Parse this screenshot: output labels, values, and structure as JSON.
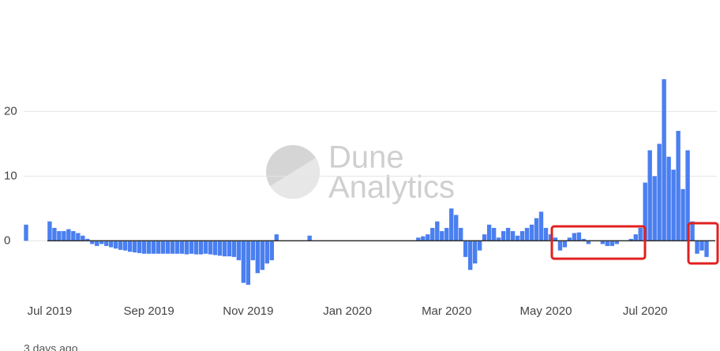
{
  "chart_data": {
    "type": "bar",
    "watermark": [
      "Dune",
      "Analytics"
    ],
    "footer": "3 days ago",
    "color": "#4a7ff0",
    "ylim": [
      -8.5,
      28.7
    ],
    "yticks": [
      0,
      10,
      20
    ],
    "grid": true,
    "categories": [
      null,
      null,
      null,
      null,
      null,
      "Jul 2019",
      null,
      null,
      null,
      null,
      null,
      null,
      null,
      null,
      null,
      null,
      null,
      null,
      null,
      null,
      null,
      null,
      null,
      null,
      null,
      null,
      "Sep 2019",
      null,
      null,
      null,
      null,
      null,
      null,
      null,
      null,
      null,
      null,
      null,
      null,
      null,
      null,
      null,
      null,
      null,
      null,
      null,
      null,
      "Nov 2019",
      null,
      null,
      null,
      null,
      null,
      null,
      null,
      null,
      null,
      null,
      null,
      null,
      null,
      null,
      null,
      null,
      null,
      null,
      null,
      null,
      "Jan 2020",
      null,
      null,
      null,
      null,
      null,
      null,
      null,
      null,
      null,
      null,
      null,
      null,
      null,
      null,
      null,
      null,
      null,
      null,
      null,
      null,
      "Mar 2020",
      null,
      null,
      null,
      null,
      null,
      null,
      null,
      null,
      null,
      null,
      null,
      null,
      null,
      null,
      null,
      null,
      null,
      null,
      null,
      null,
      "May 2020",
      null,
      null,
      null,
      null,
      null,
      null,
      null,
      null,
      null,
      null,
      null,
      null,
      null,
      null,
      null,
      null,
      null,
      null,
      null,
      null,
      "Jul 2020",
      null,
      null,
      null,
      null,
      null,
      null,
      null,
      null,
      null,
      null,
      null,
      null,
      null
    ],
    "values": [
      2.5,
      0,
      0,
      0,
      0,
      3,
      2,
      1.5,
      1.5,
      1.8,
      1.5,
      1.2,
      0.8,
      0.3,
      -0.5,
      -0.8,
      -0.5,
      -0.8,
      -1,
      -1.2,
      -1.4,
      -1.5,
      -1.7,
      -1.8,
      -1.9,
      -2,
      -2,
      -2,
      -2,
      -2,
      -2,
      -2,
      -2,
      -2,
      -2.1,
      -2,
      -2.1,
      -2.1,
      -2,
      -2.1,
      -2.2,
      -2.3,
      -2.4,
      -2.4,
      -2.5,
      -3,
      -6.5,
      -6.8,
      -3,
      -5,
      -4.5,
      -3.5,
      -3,
      1,
      0,
      0,
      0,
      0,
      0,
      0,
      0.8,
      0,
      0,
      0,
      0,
      0,
      0,
      0,
      0,
      0,
      0,
      0,
      0,
      0,
      0,
      0,
      0,
      0,
      0,
      0,
      0,
      0,
      0,
      0.5,
      0.7,
      1,
      2,
      3,
      1.5,
      2,
      5,
      4,
      2,
      -2.5,
      -4.5,
      -3.5,
      -1.5,
      1,
      2.5,
      2,
      0.5,
      1.5,
      2,
      1.5,
      0.8,
      1.5,
      2,
      2.5,
      3.5,
      4.5,
      2,
      1,
      0.5,
      -1.5,
      -1,
      0.5,
      1.2,
      1.3,
      0.3,
      -0.5,
      0,
      0,
      -0.5,
      -0.8,
      -0.8,
      -0.5,
      0,
      0,
      0.3,
      1,
      2,
      9,
      14,
      10,
      15,
      25,
      13,
      11,
      17,
      8,
      14,
      3,
      -2,
      -1.5,
      -2.5
    ]
  }
}
